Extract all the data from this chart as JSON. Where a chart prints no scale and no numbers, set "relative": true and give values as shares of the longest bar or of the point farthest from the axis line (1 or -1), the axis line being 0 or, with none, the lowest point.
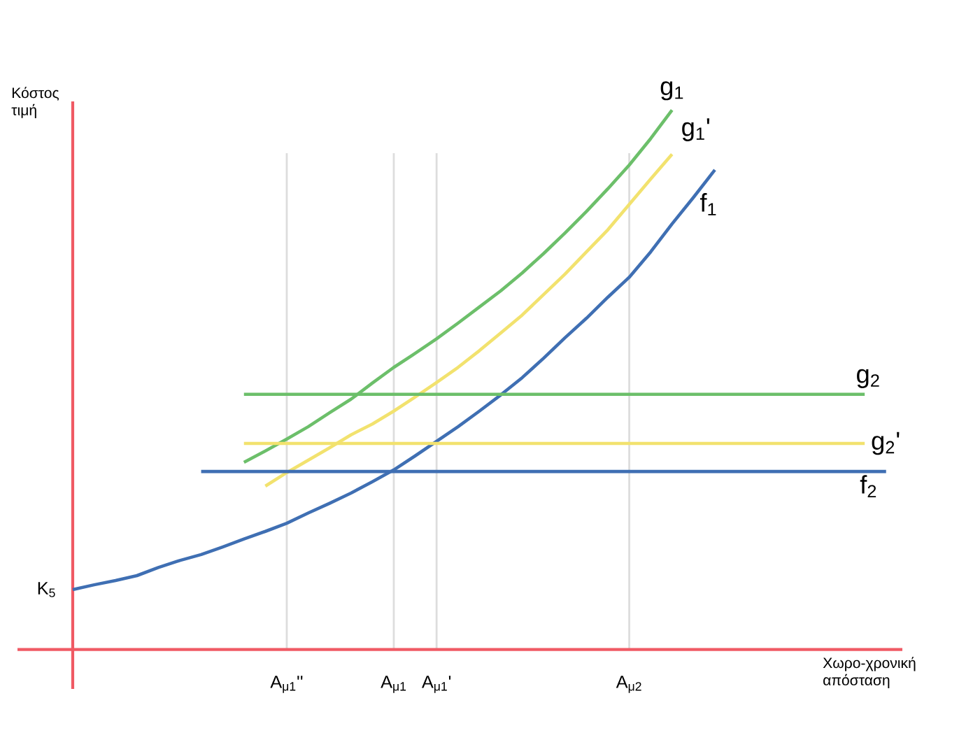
{
  "chart_data": {
    "type": "line",
    "relative": true,
    "xlabel": "Χωρο-χρονική απόσταση",
    "ylabel": "Κόστος τιμή",
    "grid": "x",
    "categories": [
      null,
      null,
      null,
      null,
      null,
      null,
      null,
      null,
      null,
      null,
      "A$_{μ1}$''",
      null,
      null,
      null,
      null,
      "A$_{μ1}$",
      null,
      "A$_{μ1}$'",
      null,
      null,
      null,
      null,
      null,
      null,
      null,
      null,
      "A$_{μ2}$",
      null,
      null,
      null,
      null,
      null,
      null,
      null,
      null,
      null,
      null,
      null,
      null
    ],
    "series": [
      {
        "name": "g$_{1}$",
        "color": "#6cbf6a",
        "values": [
          null,
          null,
          null,
          null,
          null,
          null,
          null,
          null,
          0.347,
          0.368,
          0.39,
          0.413,
          0.439,
          0.464,
          0.494,
          0.523,
          0.549,
          0.576,
          0.605,
          0.635,
          0.665,
          0.698,
          0.734,
          0.772,
          0.812,
          0.854,
          0.898,
          0.947,
          1.0,
          null,
          null,
          null,
          null,
          null,
          null,
          null,
          null,
          null,
          null
        ]
      },
      {
        "name": "g$_{1}$'",
        "color": "#f2e26e",
        "values": [
          null,
          null,
          null,
          null,
          null,
          null,
          null,
          null,
          null,
          0.303,
          0.328,
          0.351,
          0.374,
          0.398,
          0.418,
          0.442,
          0.468,
          0.495,
          0.523,
          0.554,
          0.587,
          0.62,
          0.658,
          0.696,
          0.737,
          0.778,
          0.825,
          0.872,
          0.918,
          null,
          null,
          null,
          null,
          null,
          null,
          null,
          null,
          null,
          null
        ]
      },
      {
        "name": "f$_{1}$",
        "color": "#3f6fb3",
        "values": [
          0.111,
          0.12,
          0.128,
          0.137,
          0.152,
          0.165,
          0.176,
          0.19,
          0.205,
          0.219,
          0.234,
          0.253,
          0.271,
          0.29,
          0.311,
          0.333,
          0.359,
          0.386,
          0.413,
          0.442,
          0.472,
          0.504,
          0.54,
          0.578,
          0.614,
          0.653,
          0.69,
          0.737,
          0.789,
          0.838,
          0.889,
          null,
          null,
          null,
          null,
          null,
          null,
          null,
          null
        ]
      },
      {
        "name": "g$_{2}$",
        "color": "#6cbf6a",
        "values": [
          null,
          null,
          null,
          null,
          null,
          null,
          null,
          null,
          0.473,
          0.473,
          0.473,
          0.473,
          0.473,
          0.473,
          0.473,
          0.473,
          0.473,
          0.473,
          0.473,
          0.473,
          0.473,
          0.473,
          0.473,
          0.473,
          0.473,
          0.473,
          0.473,
          0.473,
          0.473,
          0.473,
          0.473,
          0.473,
          0.473,
          0.473,
          0.473,
          0.473,
          0.473,
          0.473,
          null
        ]
      },
      {
        "name": "g$_{2}$'",
        "color": "#f2e26e",
        "values": [
          null,
          null,
          null,
          null,
          null,
          null,
          null,
          null,
          0.382,
          0.382,
          0.382,
          0.382,
          0.382,
          0.382,
          0.382,
          0.382,
          0.382,
          0.382,
          0.382,
          0.382,
          0.382,
          0.382,
          0.382,
          0.382,
          0.382,
          0.382,
          0.382,
          0.382,
          0.382,
          0.382,
          0.382,
          0.382,
          0.382,
          0.382,
          0.382,
          0.382,
          0.382,
          0.382,
          null
        ]
      },
      {
        "name": "f$_{2}$",
        "color": "#3f6fb3",
        "values": [
          null,
          null,
          null,
          null,
          null,
          null,
          0.33,
          0.33,
          0.33,
          0.33,
          0.33,
          0.33,
          0.33,
          0.33,
          0.33,
          0.33,
          0.33,
          0.33,
          0.33,
          0.33,
          0.33,
          0.33,
          0.33,
          0.33,
          0.33,
          0.33,
          0.33,
          0.33,
          0.33,
          0.33,
          0.33,
          0.33,
          0.33,
          0.33,
          0.33,
          0.33,
          0.33,
          0.33,
          0.33
        ]
      }
    ],
    "annotations": [
      "K$_{5}$"
    ]
  }
}
